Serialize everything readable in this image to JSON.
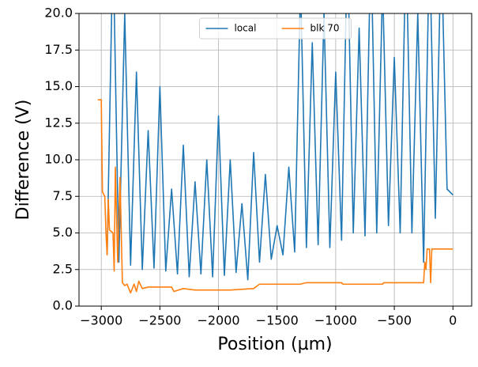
{
  "chart_data": {
    "type": "line",
    "xlabel": "Position (µm)",
    "ylabel": "Difference (V)",
    "xlim": [
      -3190,
      160
    ],
    "ylim": [
      0,
      20
    ],
    "xticks": [
      {
        "value": -3000,
        "label": "−3000"
      },
      {
        "value": -2500,
        "label": "−2500"
      },
      {
        "value": -2000,
        "label": "−2000"
      },
      {
        "value": -1500,
        "label": "−1500"
      },
      {
        "value": -1000,
        "label": "−1000"
      },
      {
        "value": -500,
        "label": "−500"
      },
      0
    ],
    "yticks": [
      {
        "value": 0,
        "label": "0.0"
      },
      2.5,
      {
        "value": 5,
        "label": "5.0"
      },
      7.5,
      {
        "value": 10,
        "label": "10.0"
      },
      12.5,
      {
        "value": 15,
        "label": "15.0"
      },
      17.5,
      {
        "value": 20,
        "label": "20.0"
      }
    ],
    "grid": true,
    "legend_loc": "upper center",
    "legend_ncol": 2,
    "series": [
      {
        "name": "local",
        "color": "#1f77b4",
        "x": [
          -2950,
          -2900,
          -2850,
          -2800,
          -2750,
          -2700,
          -2650,
          -2600,
          -2550,
          -2500,
          -2450,
          -2400,
          -2350,
          -2300,
          -2250,
          -2200,
          -2150,
          -2100,
          -2050,
          -2000,
          -1950,
          -1900,
          -1850,
          -1800,
          -1750,
          -1700,
          -1650,
          -1600,
          -1550,
          -1500,
          -1450,
          -1400,
          -1350,
          -1300,
          -1250,
          -1200,
          -1150,
          -1100,
          -1050,
          -1000,
          -950,
          -900,
          -850,
          -800,
          -750,
          -700,
          -650,
          -600,
          -550,
          -500,
          -450,
          -400,
          -350,
          -300,
          -250,
          -200,
          -150,
          -100,
          -50,
          0
        ],
        "values": [
          3.5,
          25,
          3,
          20,
          2.8,
          16,
          2.5,
          12,
          2.6,
          15,
          2.4,
          8,
          2.2,
          11,
          2,
          8.5,
          2.2,
          10,
          2,
          13,
          2.1,
          10,
          2.3,
          7,
          1.8,
          10.5,
          3,
          9,
          3.2,
          5.5,
          3.5,
          9.5,
          3.7,
          22,
          4,
          18,
          4.2,
          20,
          4,
          16,
          4.5,
          25,
          5,
          19,
          4.8,
          25,
          5,
          22,
          5.5,
          17,
          5,
          25,
          5,
          20,
          3,
          25,
          6,
          25,
          8,
          7.6
        ]
      },
      {
        "name": "blk 70",
        "color": "#ff7f0e",
        "x": [
          -3030,
          -3000,
          -2990,
          -2970,
          -2960,
          -2950,
          -2940,
          -2930,
          -2900,
          -2890,
          -2880,
          -2860,
          -2840,
          -2820,
          -2800,
          -2780,
          -2750,
          -2720,
          -2700,
          -2680,
          -2650,
          -2600,
          -2400,
          -2380,
          -2300,
          -2200,
          -2000,
          -1900,
          -1700,
          -1650,
          -1300,
          -1250,
          -950,
          -940,
          -600,
          -590,
          -250,
          -240,
          -230,
          -220,
          -200,
          -190,
          -180,
          0
        ],
        "values": [
          14.1,
          14.1,
          7.8,
          7.5,
          5,
          3.5,
          7.3,
          5.2,
          5,
          2.4,
          9.5,
          3,
          8.8,
          1.6,
          1.4,
          1.5,
          0.9,
          1.5,
          1.0,
          1.7,
          1.2,
          1.3,
          1.3,
          1.0,
          1.2,
          1.1,
          1.1,
          1.1,
          1.2,
          1.5,
          1.5,
          1.6,
          1.6,
          1.5,
          1.5,
          1.6,
          1.6,
          3,
          2.5,
          3.9,
          3.9,
          1.6,
          3.9,
          3.9
        ]
      }
    ]
  }
}
